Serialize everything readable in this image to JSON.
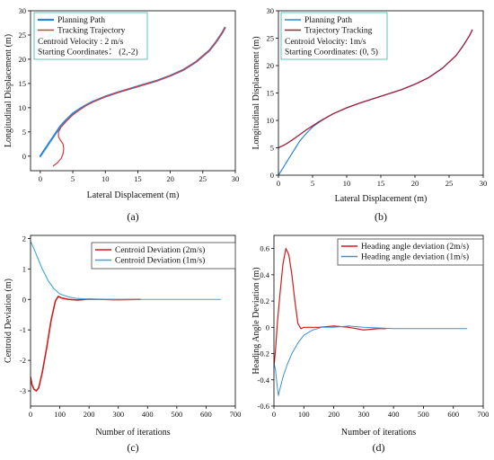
{
  "chart_data": [
    {
      "id": "a",
      "panel_label": "(a)",
      "type": "line",
      "xlabel": "Lateral Displacement (m)",
      "ylabel": "Longitudinal Displacement (m)",
      "xlim": [
        -1.5,
        30
      ],
      "ylim": [
        -3,
        30
      ],
      "xticks": [
        0,
        5,
        10,
        15,
        20,
        25,
        30
      ],
      "yticks": [
        0,
        5,
        10,
        15,
        20,
        25,
        30
      ],
      "grid": false,
      "legend_position": "top-left",
      "annotations": [
        "Centroid Velocity : 2 m/s",
        "Starting Coordinates： (2,-2)"
      ],
      "series": [
        {
          "name": "Planning Path",
          "color": "#2e86d6",
          "width": 2.2,
          "points": [
            [
              0,
              0
            ],
            [
              0.5,
              1
            ],
            [
              1,
              2
            ],
            [
              1.5,
              3
            ],
            [
              2,
              4
            ],
            [
              2.5,
              5
            ],
            [
              3,
              6
            ],
            [
              3.5,
              6.8
            ],
            [
              4,
              7.5
            ],
            [
              5,
              8.8
            ],
            [
              6,
              9.7
            ],
            [
              7,
              10.5
            ],
            [
              8,
              11.2
            ],
            [
              10,
              12.3
            ],
            [
              12,
              13.2
            ],
            [
              14,
              14.0
            ],
            [
              16,
              14.8
            ],
            [
              18,
              15.6
            ],
            [
              20,
              16.6
            ],
            [
              22,
              17.8
            ],
            [
              24,
              19.5
            ],
            [
              26,
              21.8
            ],
            [
              27,
              23.5
            ],
            [
              28,
              25.5
            ],
            [
              28.4,
              26.5
            ]
          ]
        },
        {
          "name": "Tracking Trajectory",
          "color": "#d83a3a",
          "width": 1.2,
          "points": [
            [
              2,
              -2
            ],
            [
              2.6,
              -1.4
            ],
            [
              3.2,
              -0.5
            ],
            [
              3.5,
              0.5
            ],
            [
              3.6,
              1.5
            ],
            [
              3.5,
              2.5
            ],
            [
              3.1,
              3.3
            ],
            [
              2.8,
              4
            ],
            [
              2.8,
              5
            ],
            [
              3.2,
              6
            ],
            [
              4,
              7.2
            ],
            [
              5,
              8.5
            ],
            [
              6,
              9.5
            ],
            [
              7,
              10.4
            ],
            [
              8,
              11.1
            ],
            [
              10,
              12.3
            ],
            [
              12,
              13.2
            ],
            [
              14,
              14.0
            ],
            [
              16,
              14.8
            ],
            [
              18,
              15.6
            ],
            [
              20,
              16.6
            ],
            [
              22,
              17.8
            ],
            [
              24,
              19.5
            ],
            [
              26,
              21.8
            ],
            [
              27,
              23.5
            ],
            [
              28,
              25.5
            ],
            [
              28.4,
              26.5
            ]
          ]
        }
      ]
    },
    {
      "id": "b",
      "panel_label": "(b)",
      "type": "line",
      "xlabel": "Lateral Displacement (m)",
      "ylabel": "Longitudinal Displacement (m)",
      "xlim": [
        0,
        30
      ],
      "ylim": [
        0,
        30
      ],
      "xticks": [
        0,
        5,
        10,
        15,
        20,
        25,
        30
      ],
      "yticks": [
        0,
        5,
        10,
        15,
        20,
        25,
        30
      ],
      "grid": false,
      "legend_position": "top-left",
      "annotations": [
        "Centroid Velocity: 1m/s",
        "Starting Coordinates: (0, 5)"
      ],
      "series": [
        {
          "name": "Planning Path",
          "color": "#2e86d6",
          "width": 1.2,
          "points": [
            [
              0,
              0
            ],
            [
              0.5,
              1
            ],
            [
              1,
              2
            ],
            [
              1.5,
              3
            ],
            [
              2,
              4
            ],
            [
              2.5,
              5
            ],
            [
              3,
              6
            ],
            [
              3.5,
              6.8
            ],
            [
              4,
              7.5
            ],
            [
              5,
              8.8
            ],
            [
              6,
              9.7
            ],
            [
              7,
              10.5
            ],
            [
              8,
              11.2
            ],
            [
              10,
              12.3
            ],
            [
              12,
              13.2
            ],
            [
              14,
              14.0
            ],
            [
              16,
              14.8
            ],
            [
              18,
              15.6
            ],
            [
              20,
              16.6
            ],
            [
              22,
              17.8
            ],
            [
              24,
              19.5
            ],
            [
              26,
              21.8
            ],
            [
              27,
              23.5
            ],
            [
              28,
              25.5
            ],
            [
              28.4,
              26.5
            ]
          ]
        },
        {
          "name": "Trajectory Tracking",
          "color": "#a1203a",
          "width": 1.3,
          "points": [
            [
              0,
              5
            ],
            [
              1,
              5.6
            ],
            [
              2,
              6.4
            ],
            [
              3,
              7.3
            ],
            [
              4,
              8.2
            ],
            [
              5,
              9.0
            ],
            [
              6,
              9.8
            ],
            [
              7,
              10.5
            ],
            [
              8,
              11.2
            ],
            [
              10,
              12.3
            ],
            [
              12,
              13.2
            ],
            [
              14,
              14.0
            ],
            [
              16,
              14.8
            ],
            [
              18,
              15.6
            ],
            [
              20,
              16.6
            ],
            [
              22,
              17.8
            ],
            [
              24,
              19.5
            ],
            [
              26,
              21.8
            ],
            [
              27,
              23.5
            ],
            [
              28,
              25.5
            ],
            [
              28.4,
              26.5
            ]
          ]
        }
      ]
    },
    {
      "id": "c",
      "panel_label": "(c)",
      "type": "line",
      "xlabel": "Number of iterations",
      "ylabel": "Centroid Deviation (m)",
      "xlim": [
        0,
        700
      ],
      "ylim": [
        -3.5,
        2.1
      ],
      "xticks": [
        0,
        100,
        200,
        300,
        400,
        500,
        600,
        700
      ],
      "yticks": [
        -3,
        -2,
        -1,
        0,
        1,
        2
      ],
      "grid": false,
      "legend_position": "top-right",
      "series": [
        {
          "name": "Centroid Deviation (2m/s)",
          "color": "#d01c1c",
          "width": 1.6,
          "points": [
            [
              0,
              -2.55
            ],
            [
              5,
              -2.8
            ],
            [
              12,
              -2.95
            ],
            [
              20,
              -3.0
            ],
            [
              28,
              -2.9
            ],
            [
              40,
              -2.4
            ],
            [
              55,
              -1.6
            ],
            [
              70,
              -0.7
            ],
            [
              85,
              -0.05
            ],
            [
              95,
              0.1
            ],
            [
              105,
              0.05
            ],
            [
              130,
              0.0
            ],
            [
              160,
              -0.02
            ],
            [
              200,
              0.01
            ],
            [
              250,
              0.0
            ],
            [
              300,
              -0.01
            ],
            [
              375,
              0.0
            ]
          ]
        },
        {
          "name": "Centroid Deviation (1m/s)",
          "color": "#3aa6d8",
          "width": 1.1,
          "points": [
            [
              0,
              1.9
            ],
            [
              10,
              1.7
            ],
            [
              25,
              1.35
            ],
            [
              40,
              1.0
            ],
            [
              60,
              0.62
            ],
            [
              80,
              0.35
            ],
            [
              100,
              0.18
            ],
            [
              130,
              0.08
            ],
            [
              160,
              0.03
            ],
            [
              200,
              0.01
            ],
            [
              300,
              0.0
            ],
            [
              400,
              0.0
            ],
            [
              500,
              0.0
            ],
            [
              650,
              0.0
            ]
          ]
        }
      ]
    },
    {
      "id": "d",
      "panel_label": "(d)",
      "type": "line",
      "xlabel": "Number of iterations",
      "ylabel": "Heading Angle Deviation (m)",
      "xlim": [
        0,
        700
      ],
      "ylim": [
        -0.6,
        0.7
      ],
      "xticks": [
        0,
        100,
        200,
        300,
        400,
        500,
        600,
        700
      ],
      "yticks": [
        -0.6,
        -0.4,
        -0.2,
        0.0,
        0.2,
        0.4,
        0.6
      ],
      "grid": false,
      "legend_position": "top-right",
      "series": [
        {
          "name": "Heading angle deviation (2m/s)",
          "color": "#d01c1c",
          "width": 1.2,
          "points": [
            [
              0,
              -0.3
            ],
            [
              5,
              -0.18
            ],
            [
              12,
              0.05
            ],
            [
              20,
              0.25
            ],
            [
              30,
              0.48
            ],
            [
              40,
              0.6
            ],
            [
              50,
              0.55
            ],
            [
              60,
              0.4
            ],
            [
              70,
              0.2
            ],
            [
              80,
              0.03
            ],
            [
              90,
              -0.01
            ],
            [
              100,
              0.0
            ],
            [
              120,
              0.0
            ],
            [
              150,
              0.0
            ],
            [
              200,
              0.01
            ],
            [
              250,
              0.0
            ],
            [
              300,
              -0.02
            ],
            [
              350,
              -0.01
            ],
            [
              375,
              -0.01
            ]
          ]
        },
        {
          "name": "Heading angle deviation (1m/s)",
          "color": "#3a8fd8",
          "width": 1.0,
          "points": [
            [
              0,
              -0.27
            ],
            [
              5,
              -0.32
            ],
            [
              10,
              -0.43
            ],
            [
              15,
              -0.52
            ],
            [
              20,
              -0.47
            ],
            [
              30,
              -0.38
            ],
            [
              45,
              -0.28
            ],
            [
              60,
              -0.2
            ],
            [
              80,
              -0.12
            ],
            [
              100,
              -0.06
            ],
            [
              130,
              -0.02
            ],
            [
              160,
              0.0
            ],
            [
              200,
              0.0
            ],
            [
              250,
              0.01
            ],
            [
              300,
              0.0
            ],
            [
              400,
              -0.01
            ],
            [
              500,
              -0.01
            ],
            [
              645,
              -0.01
            ]
          ]
        }
      ]
    }
  ]
}
